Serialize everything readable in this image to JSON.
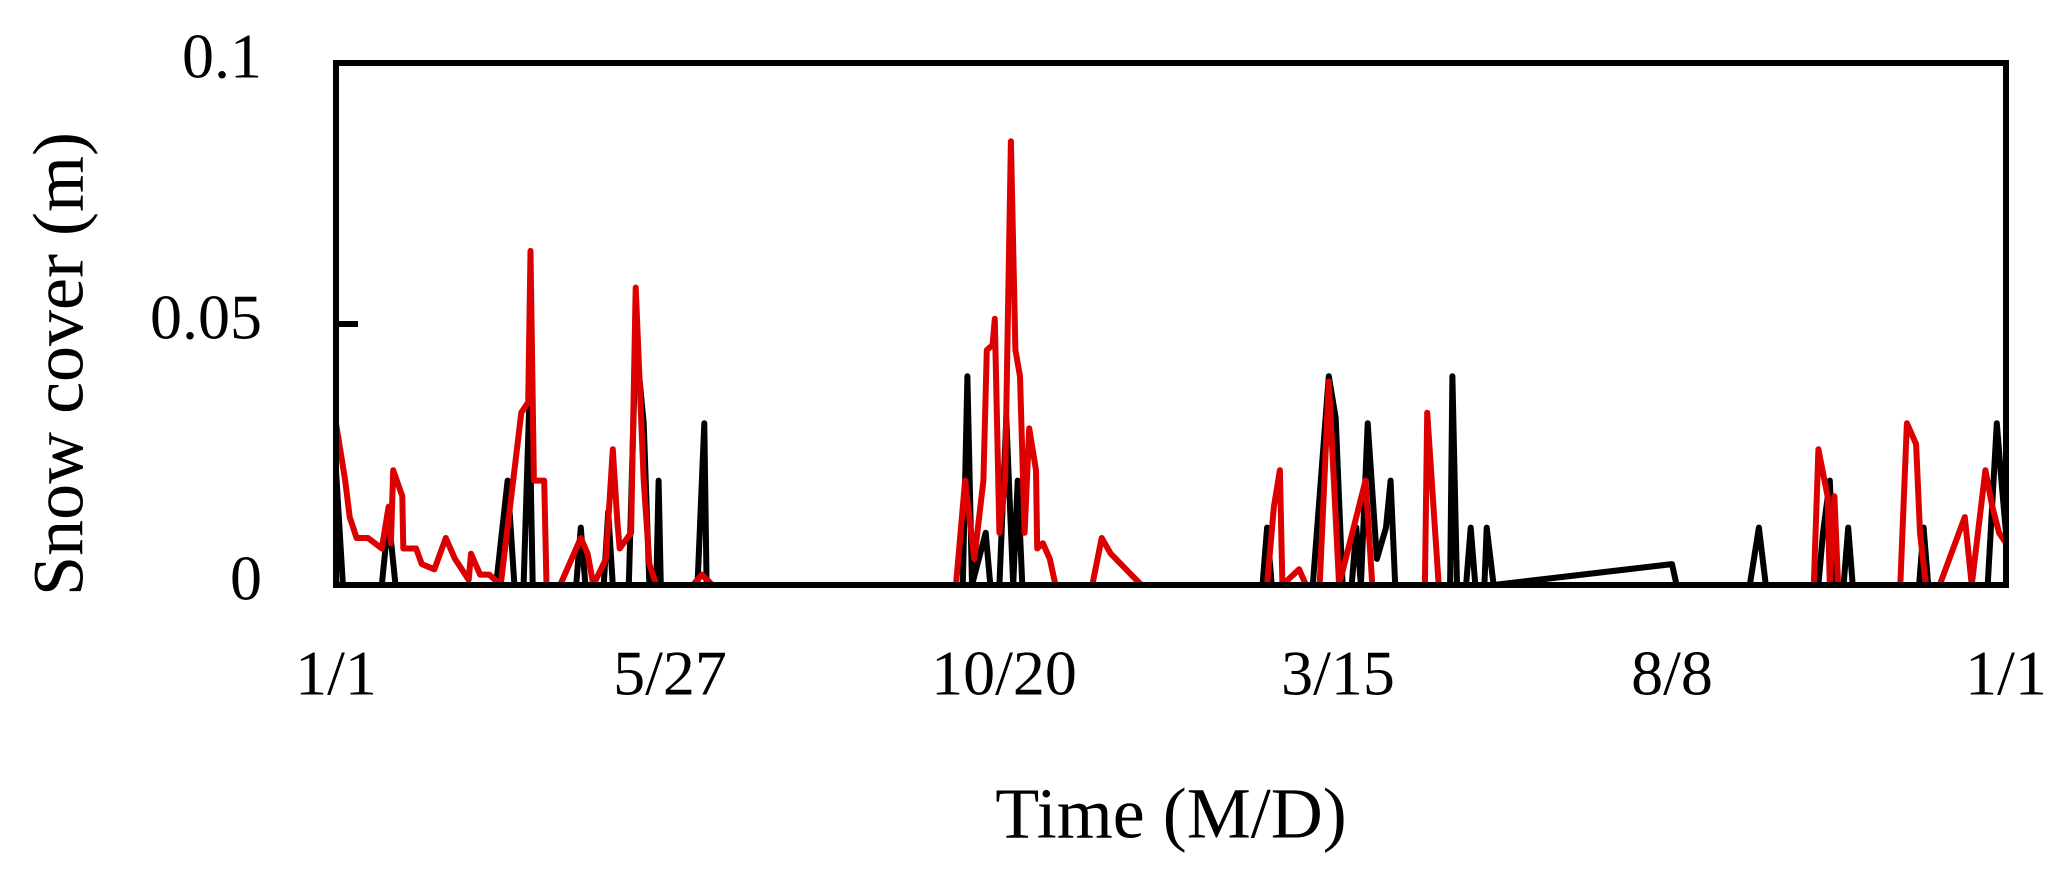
{
  "chart_data": {
    "type": "line",
    "xlabel": "Time (M/D)",
    "ylabel": "Snow cover  (m)",
    "xlim": [
      0,
      730
    ],
    "xticks": [
      {
        "value": 0,
        "label": "1/1"
      },
      {
        "value": 146,
        "label": "5/27"
      },
      {
        "value": 292,
        "label": "10/20"
      },
      {
        "value": 438,
        "label": "3/15"
      },
      {
        "value": 584,
        "label": "8/8"
      },
      {
        "value": 730,
        "label": "1/1"
      }
    ],
    "ylim": [
      0,
      0.1
    ],
    "yticks": [
      0,
      0.05,
      0.1
    ],
    "series": [
      {
        "color": "#000000",
        "x": [
          0,
          3,
          20,
          23,
          26,
          70,
          75,
          78,
          82,
          84.5,
          86,
          105,
          107,
          109,
          117,
          119,
          121,
          128,
          131,
          134.5,
          137,
          140,
          141,
          142,
          158,
          161,
          162,
          274,
          276,
          278,
          284,
          286,
          290,
          293,
          296,
          298,
          300,
          405,
          407,
          409,
          427,
          434,
          437,
          440,
          444,
          446,
          448,
          451,
          455,
          459,
          461,
          463,
          487,
          488,
          490,
          494,
          496,
          498,
          502,
          503,
          506,
          584,
          586,
          618,
          622,
          625,
          648,
          650,
          653,
          655,
          659,
          661,
          663,
          692,
          694,
          696,
          722,
          726,
          728,
          730
        ],
        "values": [
          0.022,
          0,
          0,
          0.013,
          0,
          0,
          0.02,
          0,
          0,
          0.035,
          0,
          0,
          0.011,
          0,
          0,
          0.014,
          0,
          0,
          0.047,
          0.031,
          0,
          0,
          0.02,
          0,
          0,
          0.031,
          0,
          0,
          0.04,
          0,
          0.01,
          0,
          0,
          0.032,
          0,
          0.02,
          0,
          0,
          0.011,
          0,
          0,
          0.04,
          0.032,
          0,
          0,
          0.011,
          0,
          0.031,
          0.005,
          0.011,
          0.02,
          0,
          0,
          0.04,
          0,
          0,
          0.011,
          0,
          0,
          0.011,
          0,
          0.004,
          0,
          0,
          0.011,
          0,
          0,
          0.01,
          0.02,
          0,
          0,
          0.011,
          0,
          0,
          0.011,
          0,
          0,
          0.031,
          0.02,
          0.01
        ]
      },
      {
        "color": "#dd0000",
        "x": [
          0,
          4,
          6,
          9,
          14,
          20,
          23,
          24,
          25,
          29,
          29.4,
          35,
          37.5,
          43,
          48,
          52,
          58,
          59,
          63,
          67,
          72,
          81,
          84,
          85,
          86.5,
          91,
          92,
          98,
          107,
          110,
          112.5,
          118,
          121,
          123,
          124,
          129,
          131,
          134.5,
          137,
          140,
          156,
          160,
          164.5,
          271,
          275,
          279,
          283,
          284.5,
          287,
          288,
          290,
          292.5,
          295,
          297,
          299,
          301,
          303,
          306,
          306.5,
          309,
          312,
          314.5,
          330.6,
          334.7,
          338.7,
          352,
          407,
          410,
          412.6,
          413.7,
          421,
          424,
          430,
          434,
          438.5,
          450,
          453,
          476,
          477,
          482,
          646,
          648,
          652,
          653,
          655,
          656.6,
          683.8,
          686.7,
          690.7,
          692.4,
          695,
          701,
          712,
          715,
          721,
          724,
          727,
          730
        ],
        "values": [
          0.031,
          0.02,
          0.013,
          0.009,
          0.009,
          0.007,
          0.015,
          0.008,
          0.022,
          0.017,
          0.007,
          0.007,
          0.004,
          0.003,
          0.009,
          0.005,
          0.001,
          0.006,
          0.002,
          0.002,
          0,
          0.033,
          0.035,
          0.064,
          0.02,
          0.02,
          0,
          0,
          0.009,
          0.006,
          0,
          0.005,
          0.026,
          0.012,
          0.007,
          0.01,
          0.057,
          0.02,
          0.004,
          0,
          0,
          0.002,
          0,
          0,
          0.02,
          0.005,
          0.02,
          0.045,
          0.046,
          0.051,
          0.01,
          0.02,
          0.085,
          0.045,
          0.04,
          0.01,
          0.03,
          0.022,
          0.007,
          0.008,
          0.005,
          0,
          0,
          0.009,
          0.006,
          0,
          0,
          0.015,
          0.022,
          0,
          0.003,
          0,
          0,
          0.039,
          0,
          0.02,
          0,
          0,
          0.033,
          0,
          0,
          0.026,
          0.017,
          0,
          0.017,
          0,
          0,
          0.031,
          0.027,
          0.01,
          0,
          0,
          0.013,
          0,
          0.022,
          0.015,
          0.01,
          0.008
        ]
      }
    ]
  }
}
